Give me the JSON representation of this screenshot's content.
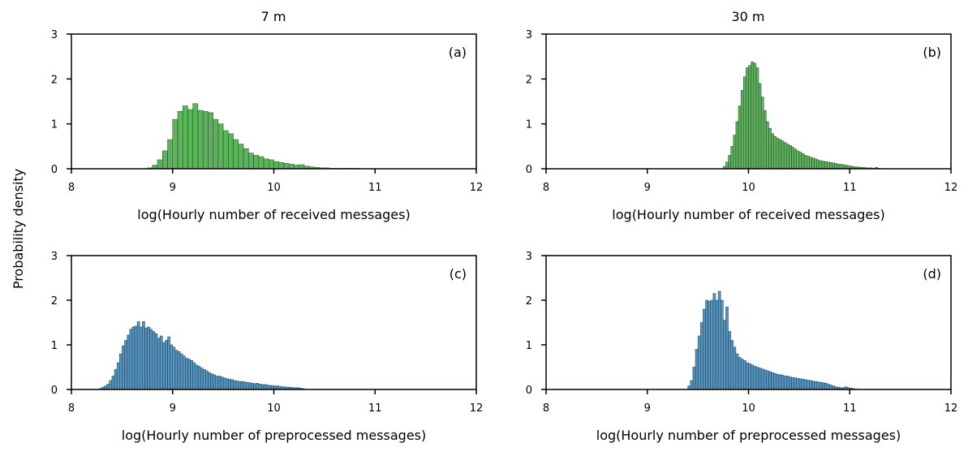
{
  "figure": {
    "ylabel_shared": "Probability density",
    "column_titles": [
      "7 m",
      "30 m"
    ]
  },
  "chart_data": [
    {
      "type": "histogram",
      "panel": "(a)",
      "column_title": "7 m",
      "xlabel": "log(Hourly number of received messages)",
      "ylabel": "Probability density",
      "xlim": [
        8,
        12
      ],
      "ylim": [
        0,
        3
      ],
      "xticks": [
        8,
        9,
        10,
        11,
        12
      ],
      "yticks": [
        0,
        1,
        2,
        3
      ],
      "color": "#2ca02c",
      "bin_width": 0.05,
      "x": [
        8.75,
        8.8,
        8.85,
        8.9,
        8.95,
        9.0,
        9.05,
        9.1,
        9.15,
        9.2,
        9.25,
        9.3,
        9.35,
        9.4,
        9.45,
        9.5,
        9.55,
        9.6,
        9.65,
        9.7,
        9.75,
        9.8,
        9.85,
        9.9,
        9.95,
        10.0,
        10.05,
        10.1,
        10.15,
        10.2,
        10.25,
        10.3,
        10.35,
        10.4,
        10.45,
        10.5,
        10.55,
        10.6,
        10.65,
        10.7,
        10.75,
        10.8
      ],
      "values": [
        0.02,
        0.08,
        0.2,
        0.4,
        0.65,
        1.1,
        1.28,
        1.4,
        1.32,
        1.45,
        1.3,
        1.28,
        1.25,
        1.1,
        1.0,
        0.85,
        0.78,
        0.65,
        0.55,
        0.45,
        0.35,
        0.3,
        0.27,
        0.22,
        0.2,
        0.16,
        0.14,
        0.12,
        0.1,
        0.08,
        0.09,
        0.06,
        0.04,
        0.03,
        0.02,
        0.02,
        0.01,
        0.01,
        0.01,
        0.01,
        0.01,
        0.01
      ]
    },
    {
      "type": "histogram",
      "panel": "(b)",
      "column_title": "30 m",
      "xlabel": "log(Hourly number of received messages)",
      "ylabel": "Probability density",
      "xlim": [
        8,
        12
      ],
      "ylim": [
        0,
        3
      ],
      "xticks": [
        8,
        9,
        10,
        11,
        12
      ],
      "yticks": [
        0,
        1,
        2,
        3
      ],
      "color": "#2ca02c",
      "bin_width": 0.025,
      "x": [
        9.75,
        9.775,
        9.8,
        9.825,
        9.85,
        9.875,
        9.9,
        9.925,
        9.95,
        9.975,
        10.0,
        10.025,
        10.05,
        10.075,
        10.1,
        10.125,
        10.15,
        10.175,
        10.2,
        10.225,
        10.25,
        10.275,
        10.3,
        10.325,
        10.35,
        10.375,
        10.4,
        10.425,
        10.45,
        10.475,
        10.5,
        10.525,
        10.55,
        10.575,
        10.6,
        10.625,
        10.65,
        10.675,
        10.7,
        10.725,
        10.75,
        10.775,
        10.8,
        10.825,
        10.85,
        10.875,
        10.9,
        10.925,
        10.95,
        10.975,
        11.0,
        11.025,
        11.05,
        11.075,
        11.1,
        11.125,
        11.15,
        11.175,
        11.2,
        11.225,
        11.25,
        11.275
      ],
      "values": [
        0.05,
        0.15,
        0.3,
        0.5,
        0.75,
        1.05,
        1.4,
        1.75,
        2.05,
        2.25,
        2.3,
        2.38,
        2.35,
        2.25,
        1.9,
        1.6,
        1.3,
        1.05,
        0.9,
        0.78,
        0.72,
        0.68,
        0.65,
        0.62,
        0.58,
        0.55,
        0.52,
        0.48,
        0.44,
        0.4,
        0.37,
        0.34,
        0.3,
        0.28,
        0.26,
        0.24,
        0.22,
        0.2,
        0.18,
        0.17,
        0.16,
        0.15,
        0.14,
        0.13,
        0.12,
        0.1,
        0.1,
        0.09,
        0.08,
        0.07,
        0.06,
        0.05,
        0.04,
        0.04,
        0.03,
        0.03,
        0.02,
        0.02,
        0.02,
        0.01,
        0.03,
        0.01
      ]
    },
    {
      "type": "histogram",
      "panel": "(c)",
      "column_title": "7 m",
      "xlabel": "log(Hourly number of preprocessed messages)",
      "ylabel": "Probability density",
      "xlim": [
        8,
        12
      ],
      "ylim": [
        0,
        3
      ],
      "xticks": [
        8,
        9,
        10,
        11,
        12
      ],
      "yticks": [
        0,
        1,
        2,
        3
      ],
      "color": "#1f77b4",
      "bin_width": 0.025,
      "x": [
        8.275,
        8.3,
        8.325,
        8.35,
        8.375,
        8.4,
        8.425,
        8.45,
        8.475,
        8.5,
        8.525,
        8.55,
        8.575,
        8.6,
        8.625,
        8.65,
        8.675,
        8.7,
        8.725,
        8.75,
        8.775,
        8.8,
        8.825,
        8.85,
        8.875,
        8.9,
        8.925,
        8.95,
        8.975,
        9.0,
        9.025,
        9.05,
        9.075,
        9.1,
        9.125,
        9.15,
        9.175,
        9.2,
        9.225,
        9.25,
        9.275,
        9.3,
        9.325,
        9.35,
        9.375,
        9.4,
        9.425,
        9.45,
        9.475,
        9.5,
        9.525,
        9.55,
        9.575,
        9.6,
        9.625,
        9.65,
        9.675,
        9.7,
        9.725,
        9.75,
        9.775,
        9.8,
        9.825,
        9.85,
        9.875,
        9.9,
        9.925,
        9.95,
        9.975,
        10.0,
        10.025,
        10.05,
        10.075,
        10.1,
        10.125,
        10.15,
        10.175,
        10.2,
        10.225,
        10.25,
        10.275
      ],
      "values": [
        0.02,
        0.05,
        0.08,
        0.12,
        0.2,
        0.3,
        0.45,
        0.6,
        0.8,
        0.98,
        1.1,
        1.22,
        1.35,
        1.4,
        1.42,
        1.52,
        1.4,
        1.52,
        1.38,
        1.4,
        1.35,
        1.3,
        1.25,
        1.15,
        1.2,
        1.05,
        1.1,
        1.18,
        1.0,
        0.95,
        0.88,
        0.85,
        0.8,
        0.75,
        0.7,
        0.68,
        0.65,
        0.6,
        0.55,
        0.52,
        0.48,
        0.45,
        0.42,
        0.38,
        0.35,
        0.33,
        0.3,
        0.3,
        0.28,
        0.26,
        0.24,
        0.23,
        0.22,
        0.2,
        0.19,
        0.18,
        0.18,
        0.17,
        0.16,
        0.15,
        0.14,
        0.13,
        0.14,
        0.12,
        0.11,
        0.11,
        0.1,
        0.09,
        0.09,
        0.08,
        0.08,
        0.07,
        0.06,
        0.06,
        0.05,
        0.05,
        0.04,
        0.04,
        0.04,
        0.03,
        0.02
      ]
    },
    {
      "type": "histogram",
      "panel": "(d)",
      "column_title": "30 m",
      "xlabel": "log(Hourly number of preprocessed messages)",
      "ylabel": "Probability density",
      "xlim": [
        8,
        12
      ],
      "ylim": [
        0,
        3
      ],
      "xticks": [
        8,
        9,
        10,
        11,
        12
      ],
      "yticks": [
        0,
        1,
        2,
        3
      ],
      "color": "#1f77b4",
      "bin_width": 0.025,
      "x": [
        9.4,
        9.425,
        9.45,
        9.475,
        9.5,
        9.525,
        9.55,
        9.575,
        9.6,
        9.625,
        9.65,
        9.675,
        9.7,
        9.725,
        9.75,
        9.775,
        9.8,
        9.825,
        9.85,
        9.875,
        9.9,
        9.925,
        9.95,
        9.975,
        10.0,
        10.025,
        10.05,
        10.075,
        10.1,
        10.125,
        10.15,
        10.175,
        10.2,
        10.225,
        10.25,
        10.275,
        10.3,
        10.325,
        10.35,
        10.375,
        10.4,
        10.425,
        10.45,
        10.475,
        10.5,
        10.525,
        10.55,
        10.575,
        10.6,
        10.625,
        10.65,
        10.675,
        10.7,
        10.725,
        10.75,
        10.775,
        10.8,
        10.825,
        10.85,
        10.875,
        10.9,
        10.925,
        10.95,
        10.975,
        11.0,
        11.025,
        11.05
      ],
      "values": [
        0.08,
        0.2,
        0.5,
        0.9,
        1.2,
        1.5,
        1.8,
        2.0,
        1.98,
        2.0,
        2.15,
        2.0,
        2.2,
        2.0,
        1.55,
        1.85,
        1.3,
        1.1,
        0.95,
        0.8,
        0.72,
        0.68,
        0.65,
        0.6,
        0.58,
        0.55,
        0.52,
        0.5,
        0.48,
        0.46,
        0.44,
        0.42,
        0.4,
        0.38,
        0.36,
        0.34,
        0.33,
        0.32,
        0.3,
        0.3,
        0.28,
        0.27,
        0.26,
        0.25,
        0.24,
        0.23,
        0.22,
        0.21,
        0.2,
        0.19,
        0.18,
        0.17,
        0.16,
        0.15,
        0.14,
        0.12,
        0.1,
        0.08,
        0.06,
        0.05,
        0.04,
        0.04,
        0.06,
        0.04,
        0.03,
        0.02,
        0.01
      ]
    }
  ]
}
